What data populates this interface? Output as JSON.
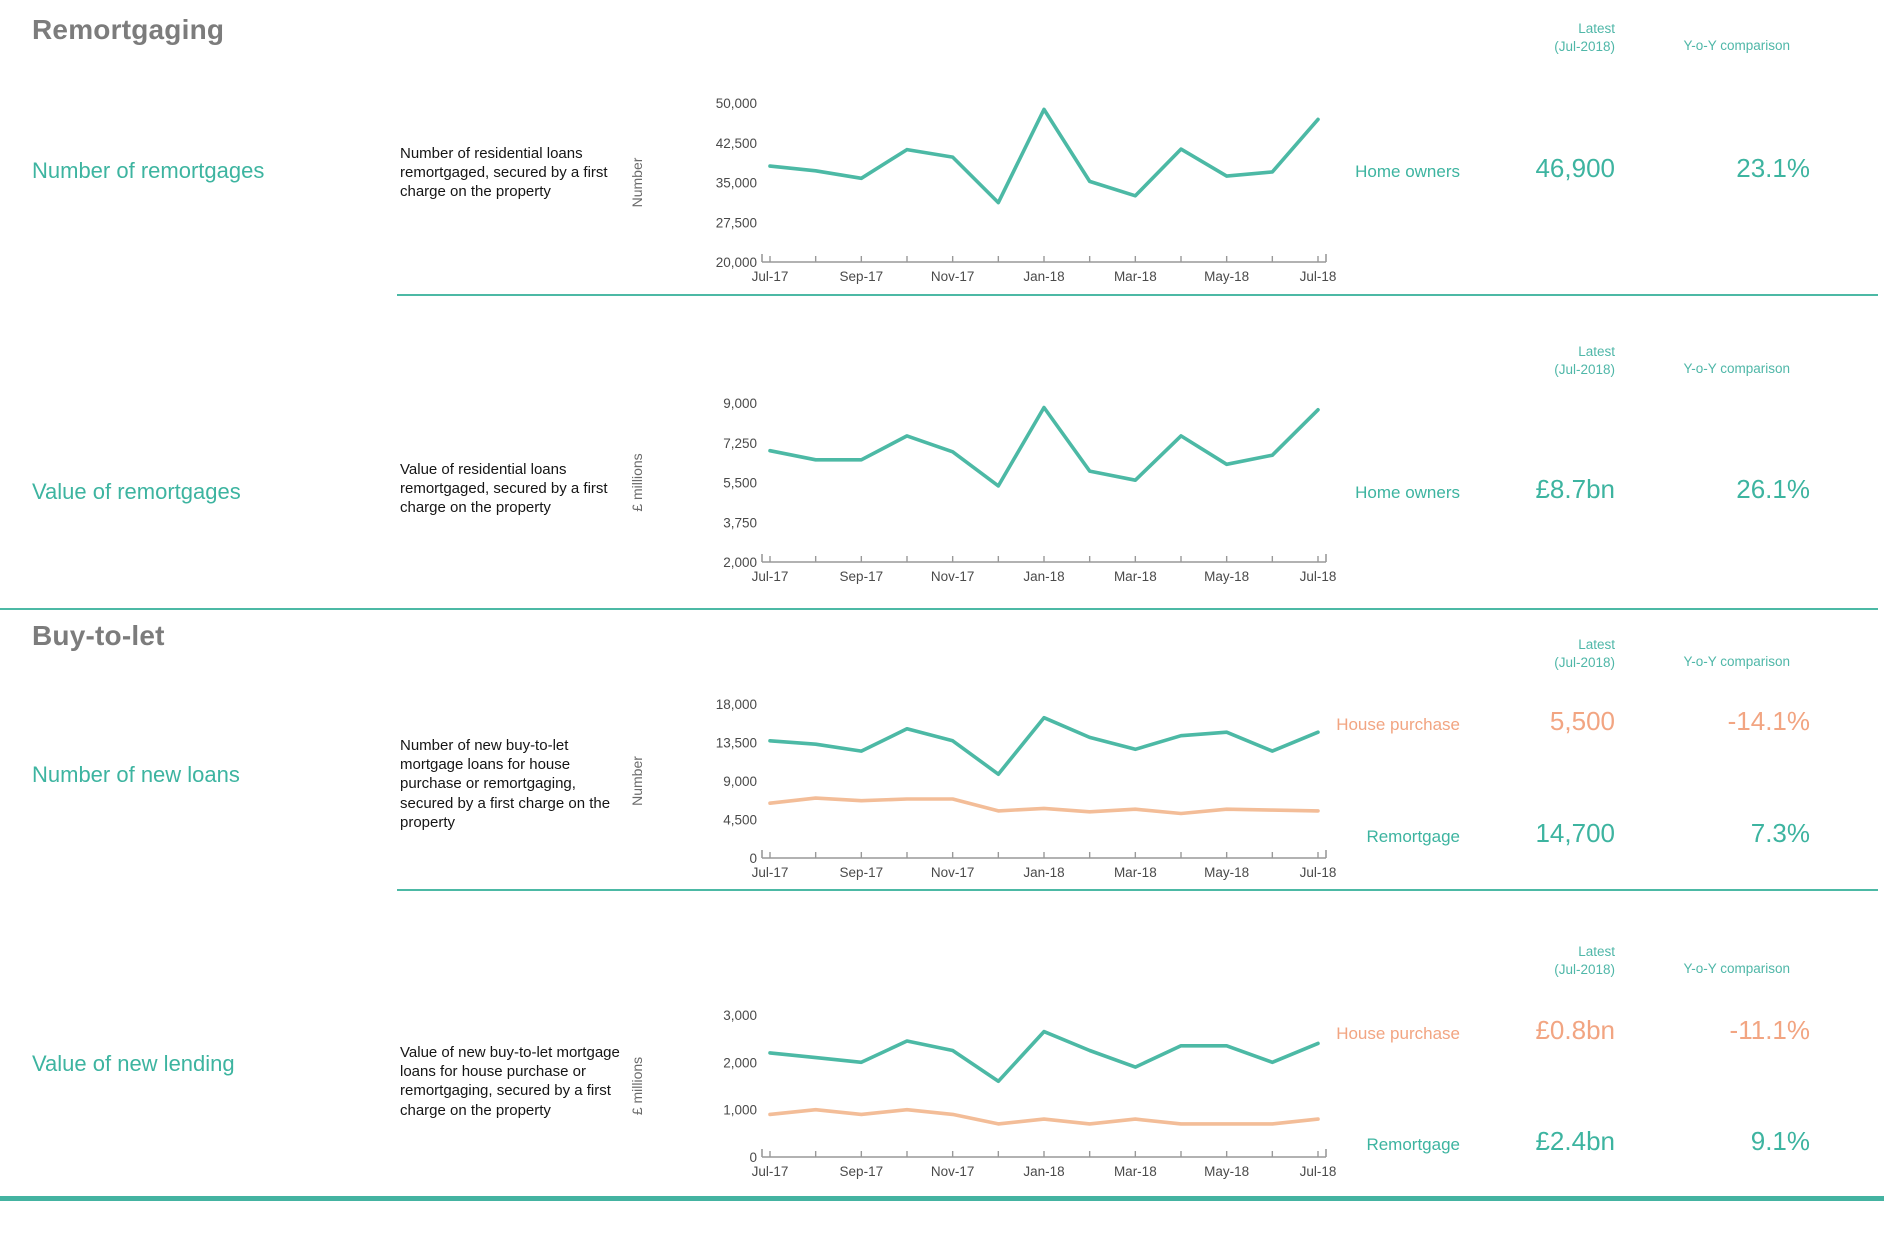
{
  "colors": {
    "teal_text": "#3db4a0",
    "teal_line": "#4cb9a5",
    "salmon_text": "#f2a582",
    "salmon_line": "#f3bd98",
    "title_gray": "#7c7c7c",
    "axis_text": "#4a4a4a",
    "axis_line": "#999999"
  },
  "headers": {
    "latest_line1": "Latest",
    "latest_line2": "(Jul-2018)",
    "yoy": "Y-o-Y comparison"
  },
  "sections": [
    {
      "title": "Remortgaging"
    },
    {
      "title": "Buy-to-let"
    }
  ],
  "rows": [
    {
      "label": "Number of remortgages",
      "description": "Number of residential loans remortgaged, secured by a first charge on the property",
      "series_rows": [
        {
          "label": "Home owners",
          "latest": "46,900",
          "yoy": "23.1%",
          "color": "teal"
        }
      ]
    },
    {
      "label": "Value of remortgages",
      "description": "Value of residential loans remortgaged, secured by a first charge on the property",
      "series_rows": [
        {
          "label": "Home owners",
          "latest": "£8.7bn",
          "yoy": "26.1%",
          "color": "teal"
        }
      ]
    },
    {
      "label": "Number of new loans",
      "description": "Number of new buy-to-let mortgage loans for house purchase or remortgaging, secured by a first charge on the property",
      "series_rows": [
        {
          "label": "House purchase",
          "latest": "5,500",
          "yoy": "-14.1%",
          "color": "salmon"
        },
        {
          "label": "Remortgage",
          "latest": "14,700",
          "yoy": "7.3%",
          "color": "teal"
        }
      ]
    },
    {
      "label": "Value of new lending",
      "description": "Value of new buy-to-let mortgage loans for house purchase or remortgaging, secured by a first charge on the property",
      "series_rows": [
        {
          "label": "House purchase",
          "latest": "£0.8bn",
          "yoy": "-11.1%",
          "color": "salmon"
        },
        {
          "label": "Remortgage",
          "latest": "£2.4bn",
          "yoy": "9.1%",
          "color": "teal"
        }
      ]
    }
  ],
  "chart_data": [
    {
      "type": "line",
      "title": "Number of remortgages",
      "x": [
        "Jul-17",
        "Aug-17",
        "Sep-17",
        "Oct-17",
        "Nov-17",
        "Dec-17",
        "Jan-18",
        "Feb-18",
        "Mar-18",
        "Apr-18",
        "May-18",
        "Jun-18",
        "Jul-18"
      ],
      "x_tick_labels": [
        "Jul-17",
        "Sep-17",
        "Nov-17",
        "Jan-18",
        "Mar-18",
        "May-18",
        "Jul-18"
      ],
      "ylabel": "Number",
      "ylim": [
        20000,
        50000
      ],
      "yticks": [
        20000,
        27500,
        35000,
        42500,
        50000
      ],
      "grid": false,
      "legend_position": "none",
      "series": [
        {
          "name": "Home owners",
          "color": "#4cb9a5",
          "values": [
            38100,
            37200,
            35800,
            41200,
            39800,
            31200,
            48800,
            35200,
            32500,
            41300,
            36200,
            37000,
            46900
          ]
        }
      ]
    },
    {
      "type": "line",
      "title": "Value of remortgages",
      "x": [
        "Jul-17",
        "Aug-17",
        "Sep-17",
        "Oct-17",
        "Nov-17",
        "Dec-17",
        "Jan-18",
        "Feb-18",
        "Mar-18",
        "Apr-18",
        "May-18",
        "Jun-18",
        "Jul-18"
      ],
      "x_tick_labels": [
        "Jul-17",
        "Sep-17",
        "Nov-17",
        "Jan-18",
        "Mar-18",
        "May-18",
        "Jul-18"
      ],
      "ylabel": "£ millions",
      "ylim": [
        2000,
        9000
      ],
      "yticks": [
        2000,
        3750,
        5500,
        7250,
        9000
      ],
      "grid": false,
      "legend_position": "none",
      "series": [
        {
          "name": "Home owners",
          "color": "#4cb9a5",
          "values": [
            6900,
            6500,
            6500,
            7550,
            6850,
            5350,
            8800,
            6000,
            5600,
            7550,
            6300,
            6700,
            8700
          ]
        }
      ]
    },
    {
      "type": "line",
      "title": "Number of new loans (buy-to-let)",
      "x": [
        "Jul-17",
        "Aug-17",
        "Sep-17",
        "Oct-17",
        "Nov-17",
        "Dec-17",
        "Jan-18",
        "Feb-18",
        "Mar-18",
        "Apr-18",
        "May-18",
        "Jun-18",
        "Jul-18"
      ],
      "x_tick_labels": [
        "Jul-17",
        "Sep-17",
        "Nov-17",
        "Jan-18",
        "Mar-18",
        "May-18",
        "Jul-18"
      ],
      "ylabel": "Number",
      "ylim": [
        0,
        18000
      ],
      "yticks": [
        0,
        4500,
        9000,
        13500,
        18000
      ],
      "grid": false,
      "legend_position": "none",
      "series": [
        {
          "name": "Remortgage",
          "color": "#4cb9a5",
          "values": [
            13700,
            13300,
            12500,
            15100,
            13700,
            9800,
            16400,
            14100,
            12700,
            14300,
            14700,
            12500,
            14700
          ]
        },
        {
          "name": "House purchase",
          "color": "#f3bd98",
          "values": [
            6400,
            7000,
            6700,
            6900,
            6900,
            5500,
            5800,
            5400,
            5700,
            5200,
            5700,
            5600,
            5500
          ]
        }
      ]
    },
    {
      "type": "line",
      "title": "Value of new lending (buy-to-let)",
      "x": [
        "Jul-17",
        "Aug-17",
        "Sep-17",
        "Oct-17",
        "Nov-17",
        "Dec-17",
        "Jan-18",
        "Feb-18",
        "Mar-18",
        "Apr-18",
        "May-18",
        "Jun-18",
        "Jul-18"
      ],
      "x_tick_labels": [
        "Jul-17",
        "Sep-17",
        "Nov-17",
        "Jan-18",
        "Mar-18",
        "May-18",
        "Jul-18"
      ],
      "ylabel": "£ millions",
      "ylim": [
        0,
        3000
      ],
      "yticks": [
        0,
        1000,
        2000,
        3000
      ],
      "grid": false,
      "legend_position": "none",
      "series": [
        {
          "name": "Remortgage",
          "color": "#4cb9a5",
          "values": [
            2200,
            2100,
            2000,
            2450,
            2250,
            1600,
            2650,
            2250,
            1900,
            2350,
            2350,
            2000,
            2400
          ]
        },
        {
          "name": "House purchase",
          "color": "#f3bd98",
          "values": [
            900,
            1000,
            900,
            1000,
            900,
            700,
            800,
            700,
            800,
            700,
            700,
            700,
            800
          ]
        }
      ]
    }
  ]
}
